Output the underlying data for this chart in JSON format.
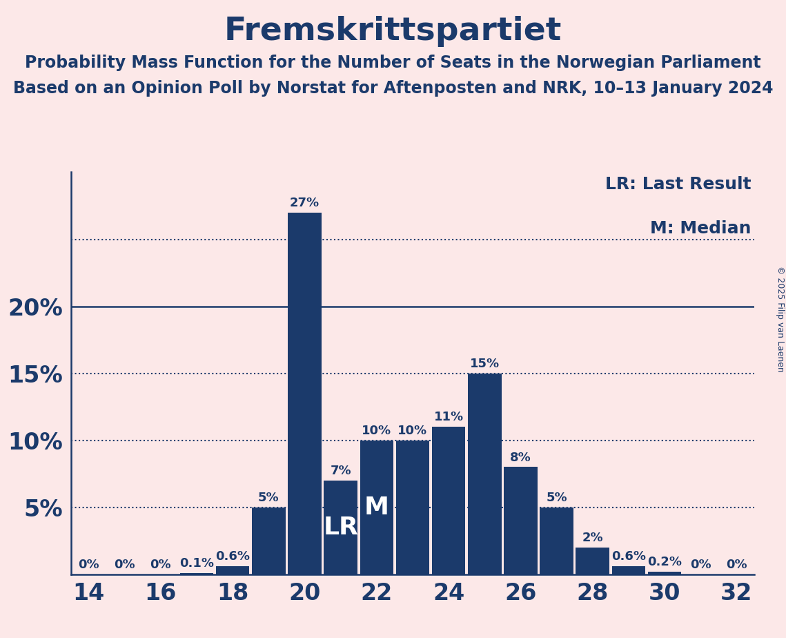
{
  "title": "Fremskrittspartiet",
  "subtitle1": "Probability Mass Function for the Number of Seats in the Norwegian Parliament",
  "subtitle2": "Based on an Opinion Poll by Norstat for Aftenposten and NRK, 10–13 January 2024",
  "copyright": "© 2025 Filip van Laenen",
  "legend_lr": "LR: Last Result",
  "legend_m": "M: Median",
  "background_color": "#fce8e8",
  "bar_color": "#1b3a6b",
  "text_color": "#1b3a6b",
  "grid_color": "#1b3a6b",
  "seats": [
    14,
    15,
    16,
    17,
    18,
    19,
    20,
    21,
    22,
    23,
    24,
    25,
    26,
    27,
    28,
    29,
    30,
    31,
    32
  ],
  "probs": [
    0.0,
    0.0,
    0.0,
    0.1,
    0.6,
    5.0,
    27.0,
    7.0,
    10.0,
    10.0,
    11.0,
    15.0,
    8.0,
    5.0,
    2.0,
    0.6,
    0.2,
    0.0,
    0.0
  ],
  "prob_labels": [
    "0%",
    "0%",
    "0%",
    "0.1%",
    "0.6%",
    "5%",
    "27%",
    "7%",
    "10%",
    "10%",
    "11%",
    "15%",
    "8%",
    "5%",
    "2%",
    "0.6%",
    "0.2%",
    "0%",
    "0%"
  ],
  "show_label": [
    true,
    true,
    true,
    true,
    true,
    true,
    true,
    true,
    true,
    true,
    true,
    true,
    true,
    true,
    true,
    true,
    true,
    true,
    true
  ],
  "lr_seat": 21,
  "median_seat": 22,
  "ylim": [
    0,
    30
  ],
  "ytick_positions": [
    5,
    10,
    15,
    20
  ],
  "ytick_labels": [
    "5%",
    "10%",
    "15%",
    "20%"
  ],
  "xticks": [
    14,
    16,
    18,
    20,
    22,
    24,
    26,
    28,
    30,
    32
  ],
  "dotted_lines": [
    5,
    10,
    15,
    25
  ],
  "solid_lines": [
    20
  ],
  "title_fontsize": 34,
  "subtitle_fontsize": 17,
  "axis_tick_fontsize": 24,
  "bar_label_fontsize": 13,
  "legend_fontsize": 18,
  "lr_m_fontsize": 26,
  "copyright_fontsize": 9,
  "bar_width": 0.93
}
